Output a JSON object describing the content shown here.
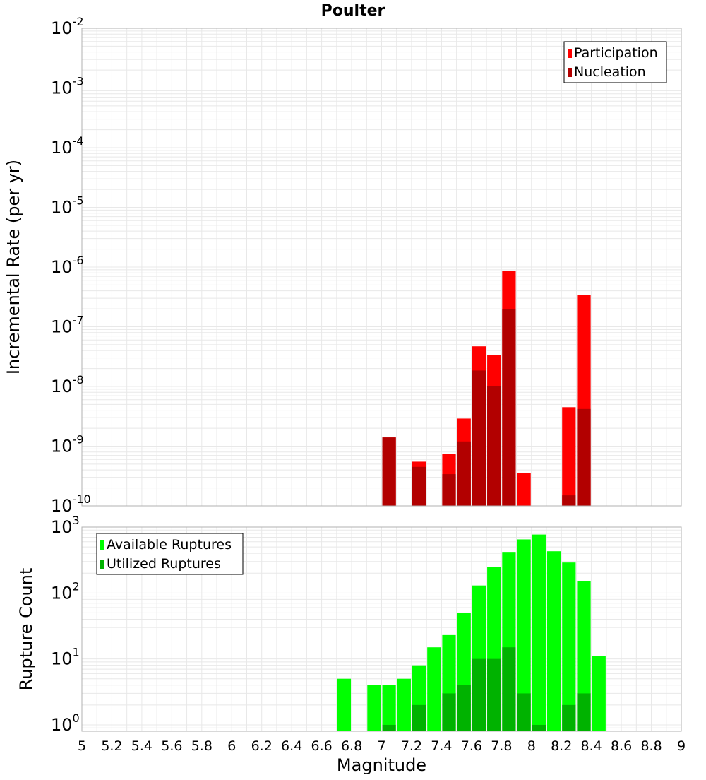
{
  "title": "Poulter",
  "colors": {
    "participation": "#ff0000",
    "nucleation": "#b20000",
    "available": "#00ff00",
    "utilized": "#00b200",
    "grid": "#e8e8e8",
    "frame": "#b0b0b0"
  },
  "chart_data": [
    {
      "type": "bar",
      "title": "Poulter",
      "xlabel": "",
      "ylabel": "Incremental Rate (per yr)",
      "yscale": "log",
      "ylim": [
        1e-10,
        0.01
      ],
      "xlim": [
        5,
        9
      ],
      "grid": true,
      "legend_position": "top-right",
      "ytick_labels": [
        {
          "base": "10",
          "exp": "-10",
          "value": 1e-10
        },
        {
          "base": "10",
          "exp": "-9",
          "value": 1e-09
        },
        {
          "base": "10",
          "exp": "-8",
          "value": 1e-08
        },
        {
          "base": "10",
          "exp": "-7",
          "value": 1e-07
        },
        {
          "base": "10",
          "exp": "-6",
          "value": 1e-06
        },
        {
          "base": "10",
          "exp": "-5",
          "value": 1e-05
        },
        {
          "base": "10",
          "exp": "-4",
          "value": 0.0001
        },
        {
          "base": "10",
          "exp": "-3",
          "value": 0.001
        },
        {
          "base": "10",
          "exp": "-2",
          "value": 0.01
        }
      ],
      "bar_width": 0.1,
      "series": [
        {
          "name": "Participation",
          "color": "#ff0000",
          "x": [
            7.05,
            7.25,
            7.45,
            7.55,
            7.65,
            7.75,
            7.85,
            7.95,
            8.25,
            8.35
          ],
          "values": [
            1.4e-09,
            5.5e-10,
            7.5e-10,
            2.9e-09,
            4.7e-08,
            3.4e-08,
            8.5e-07,
            3.6e-10,
            4.5e-09,
            3.4e-07
          ]
        },
        {
          "name": "Nucleation",
          "color": "#b20000",
          "x": [
            7.05,
            7.25,
            7.45,
            7.55,
            7.65,
            7.75,
            7.85,
            8.25,
            8.35
          ],
          "values": [
            1.4e-09,
            4.5e-10,
            3.4e-10,
            1.2e-09,
            1.85e-08,
            1e-08,
            2e-07,
            1.5e-10,
            4.2e-09
          ]
        }
      ]
    },
    {
      "type": "bar",
      "xlabel": "Magnitude",
      "ylabel": "Rupture Count",
      "yscale": "log",
      "ylim": [
        0.8,
        1000
      ],
      "xlim": [
        5,
        9
      ],
      "grid": true,
      "legend_position": "top-left",
      "ytick_labels": [
        {
          "base": "10",
          "exp": "0",
          "value": 1
        },
        {
          "base": "10",
          "exp": "1",
          "value": 10
        },
        {
          "base": "10",
          "exp": "2",
          "value": 100
        },
        {
          "base": "10",
          "exp": "3",
          "value": 1000
        }
      ],
      "xtick_labels": [
        "5",
        "5.2",
        "5.4",
        "5.6",
        "5.8",
        "6",
        "6.2",
        "6.4",
        "6.6",
        "6.8",
        "7",
        "7.2",
        "7.4",
        "7.6",
        "7.8",
        "8",
        "8.2",
        "8.4",
        "8.6",
        "8.8",
        "9"
      ],
      "bar_width": 0.1,
      "series": [
        {
          "name": "Available Ruptures",
          "color": "#00ff00",
          "x": [
            6.75,
            6.95,
            7.05,
            7.15,
            7.25,
            7.35,
            7.45,
            7.55,
            7.65,
            7.75,
            7.85,
            7.95,
            8.05,
            8.15,
            8.25,
            8.35,
            8.45
          ],
          "values": [
            5,
            4,
            4,
            5,
            8,
            15,
            23,
            50,
            130,
            250,
            420,
            650,
            770,
            430,
            290,
            150,
            11
          ]
        },
        {
          "name": "Utilized Ruptures",
          "color": "#00b200",
          "x": [
            7.05,
            7.25,
            7.45,
            7.55,
            7.65,
            7.75,
            7.85,
            7.95,
            8.05,
            8.25,
            8.35
          ],
          "values": [
            1,
            2,
            3,
            4,
            10,
            10,
            15,
            3,
            1,
            2,
            3
          ]
        }
      ]
    }
  ]
}
